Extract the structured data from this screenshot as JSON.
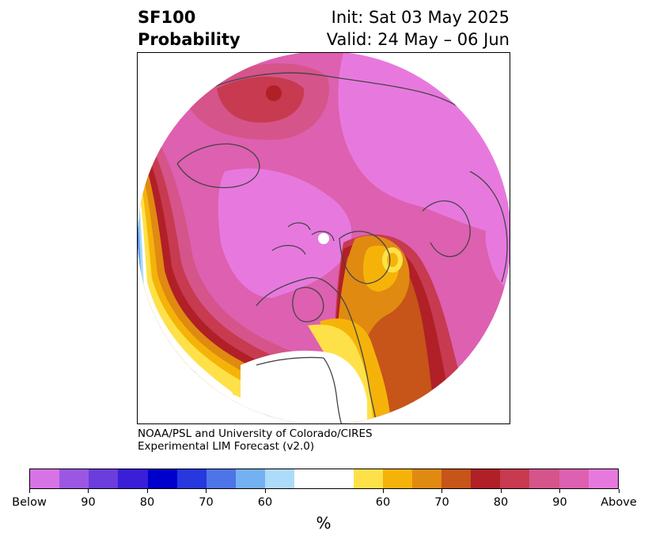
{
  "title": {
    "left_line1": "SF100",
    "left_line2": "Probability",
    "right_line1": "Init: Sat 03 May 2025",
    "right_line2": "Valid: 24 May – 06 Jun"
  },
  "credit": {
    "line1": "NOAA/PSL and University of Colorado/CIRES",
    "line2": "Experimental LIM Forecast (v2.0)"
  },
  "colorbar": {
    "units": "%",
    "colors": [
      "#d873e6",
      "#9b57e4",
      "#6b3ddc",
      "#3a1ed8",
      "#0000cc",
      "#2638de",
      "#4d74e8",
      "#74b1f2",
      "#acdcfa",
      "#ffffff",
      "#ffffff",
      "#fee148",
      "#f5b30a",
      "#e08a12",
      "#c75418",
      "#b02026",
      "#c73a50",
      "#d5548a",
      "#de60b0",
      "#e779de"
    ],
    "tick_labels": [
      "Below",
      "90",
      "80",
      "70",
      "60",
      "60",
      "70",
      "80",
      "90",
      "Above"
    ]
  },
  "map": {
    "projection": "north-polar-stereographic",
    "palette": {
      "magenta": "#e779de",
      "pink": "#de60b0",
      "rose": "#d5548a",
      "crimson": "#c73a50",
      "dark_red": "#b02026",
      "rust": "#c75418",
      "orange": "#e08a12",
      "gold": "#f5b30a",
      "yellow": "#fee148",
      "light_blue": "#acdcfa",
      "sky_blue": "#74b1f2",
      "blue": "#4d74e8",
      "coast": "#444444"
    }
  }
}
